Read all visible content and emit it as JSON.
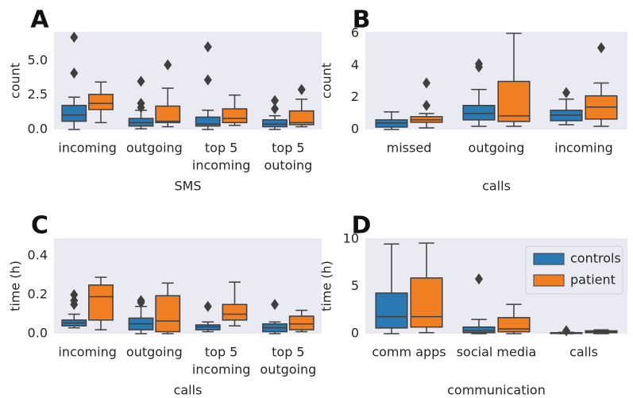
{
  "chart_data": [
    {
      "type": "box",
      "label": "A",
      "xlabel": "SMS",
      "ylabel": "count",
      "categories": [
        [
          "incoming"
        ],
        [
          "outgoing"
        ],
        [
          "top 5",
          "incoming"
        ],
        [
          "top 5",
          "outoing"
        ]
      ],
      "ylim": [
        0,
        7.1
      ],
      "yticks": [
        {
          "value": 0,
          "label": "0.0"
        },
        2.5,
        {
          "value": 5,
          "label": "5.0"
        }
      ],
      "series": [
        {
          "name": "controls",
          "color": "#2b79b3",
          "boxes": [
            {
              "min": 0,
              "q1": 0.6,
              "median": 1.05,
              "q3": 1.75,
              "max": 2.35,
              "outliers": [
                6.7,
                4.1
              ]
            },
            {
              "min": 0.05,
              "q1": 0.25,
              "median": 0.5,
              "q3": 0.8,
              "max": 1.4,
              "outliers": [
                3.5,
                1.9,
                1.6
              ]
            },
            {
              "min": 0,
              "q1": 0.25,
              "median": 0.4,
              "q3": 0.9,
              "max": 1.4,
              "outliers": [
                6.0,
                3.6
              ]
            },
            {
              "min": 0,
              "q1": 0.2,
              "median": 0.4,
              "q3": 0.7,
              "max": 1.0,
              "outliers": [
                2.1,
                1.5
              ]
            }
          ]
        },
        {
          "name": "patient",
          "color": "#ef7f22",
          "boxes": [
            {
              "min": 0.5,
              "q1": 1.45,
              "median": 1.9,
              "q3": 2.55,
              "max": 3.45,
              "outliers": []
            },
            {
              "min": 0.2,
              "q1": 0.5,
              "median": 0.6,
              "q3": 1.7,
              "max": 3.0,
              "outliers": [
                4.7
              ]
            },
            {
              "min": 0.3,
              "q1": 0.5,
              "median": 0.8,
              "q3": 1.5,
              "max": 2.5,
              "outliers": []
            },
            {
              "min": 0.2,
              "q1": 0.35,
              "median": 0.5,
              "q3": 1.35,
              "max": 2.2,
              "outliers": [
                2.9
              ]
            }
          ]
        }
      ]
    },
    {
      "type": "box",
      "label": "B",
      "xlabel": "calls",
      "ylabel": "count",
      "categories": [
        [
          "missed"
        ],
        [
          "outgoing"
        ],
        [
          "incoming"
        ]
      ],
      "ylim": [
        0,
        6.1
      ],
      "yticks": [
        0,
        2,
        4,
        6
      ],
      "series": [
        {
          "name": "controls",
          "color": "#2b79b3",
          "boxes": [
            {
              "min": 0,
              "q1": 0.15,
              "median": 0.4,
              "q3": 0.6,
              "max": 1.1,
              "outliers": []
            },
            {
              "min": 0.2,
              "q1": 0.6,
              "median": 1.0,
              "q3": 1.5,
              "max": 2.5,
              "outliers": [
                4.1,
                3.9
              ]
            },
            {
              "min": 0.3,
              "q1": 0.55,
              "median": 0.9,
              "q3": 1.2,
              "max": 1.9,
              "outliers": [
                2.3
              ]
            }
          ]
        },
        {
          "name": "patient",
          "color": "#ef7f22",
          "boxes": [
            {
              "min": 0.1,
              "q1": 0.45,
              "median": 0.6,
              "q3": 0.8,
              "max": 1.0,
              "outliers": [
                2.9,
                1.5
              ]
            },
            {
              "min": 0.2,
              "q1": 0.5,
              "median": 0.85,
              "q3": 3.0,
              "max": 6.0,
              "outliers": []
            },
            {
              "min": 0.2,
              "q1": 0.65,
              "median": 1.4,
              "q3": 2.1,
              "max": 2.9,
              "outliers": [
                5.1
              ]
            }
          ]
        }
      ]
    },
    {
      "type": "box",
      "label": "C",
      "xlabel": "calls",
      "ylabel": "time (h)",
      "categories": [
        [
          "incoming"
        ],
        [
          "outgoing"
        ],
        [
          "top 5",
          "incoming"
        ],
        [
          "top 5",
          "outgoing"
        ]
      ],
      "ylim": [
        0,
        0.49
      ],
      "yticks": [
        {
          "value": 0,
          "label": "0.0"
        },
        0.2,
        0.4
      ],
      "series": [
        {
          "name": "controls",
          "color": "#2b79b3",
          "boxes": [
            {
              "min": 0.03,
              "q1": 0.04,
              "median": 0.055,
              "q3": 0.07,
              "max": 0.1,
              "outliers": [
                0.2,
                0.17,
                0.15
              ]
            },
            {
              "min": 0,
              "q1": 0.02,
              "median": 0.05,
              "q3": 0.08,
              "max": 0.14,
              "outliers": [
                0.17,
                0.16
              ]
            },
            {
              "min": 0.01,
              "q1": 0.02,
              "median": 0.035,
              "q3": 0.045,
              "max": 0.06,
              "outliers": [
                0.14
              ]
            },
            {
              "min": 0,
              "q1": 0.01,
              "median": 0.03,
              "q3": 0.05,
              "max": 0.06,
              "outliers": [
                0.15
              ]
            }
          ]
        },
        {
          "name": "patient",
          "color": "#ef7f22",
          "boxes": [
            {
              "min": 0.02,
              "q1": 0.07,
              "median": 0.19,
              "q3": 0.25,
              "max": 0.29,
              "outliers": []
            },
            {
              "min": 0,
              "q1": 0.01,
              "median": 0.065,
              "q3": 0.195,
              "max": 0.26,
              "outliers": []
            },
            {
              "min": 0.04,
              "q1": 0.07,
              "median": 0.1,
              "q3": 0.15,
              "max": 0.265,
              "outliers": []
            },
            {
              "min": 0.01,
              "q1": 0.02,
              "median": 0.05,
              "q3": 0.09,
              "max": 0.12,
              "outliers": []
            }
          ]
        }
      ]
    },
    {
      "type": "box",
      "label": "D",
      "xlabel": "communication",
      "ylabel": "time (h)",
      "categories": [
        [
          "comm apps"
        ],
        [
          "social media"
        ],
        [
          "calls"
        ]
      ],
      "ylim": [
        0,
        10.1
      ],
      "yticks": [
        0,
        5,
        10
      ],
      "legend": "upper right",
      "series": [
        {
          "name": "controls",
          "color": "#2b79b3",
          "boxes": [
            {
              "min": 0,
              "q1": 0.6,
              "median": 1.8,
              "q3": 4.3,
              "max": 9.5,
              "outliers": []
            },
            {
              "min": 0,
              "q1": 0.1,
              "median": 0.3,
              "q3": 0.7,
              "max": 1.5,
              "outliers": [
                5.8
              ]
            },
            {
              "min": 0,
              "q1": 0.02,
              "median": 0.05,
              "q3": 0.1,
              "max": 0.15,
              "outliers": [
                0.3
              ]
            }
          ]
        },
        {
          "name": "patient",
          "color": "#ef7f22",
          "boxes": [
            {
              "min": 0.1,
              "q1": 0.7,
              "median": 1.8,
              "q3": 5.9,
              "max": 9.6,
              "outliers": []
            },
            {
              "min": 0,
              "q1": 0.2,
              "median": 0.5,
              "q3": 1.7,
              "max": 3.1,
              "outliers": []
            },
            {
              "min": 0,
              "q1": 0.1,
              "median": 0.2,
              "q3": 0.3,
              "max": 0.4,
              "outliers": []
            }
          ]
        }
      ]
    }
  ]
}
